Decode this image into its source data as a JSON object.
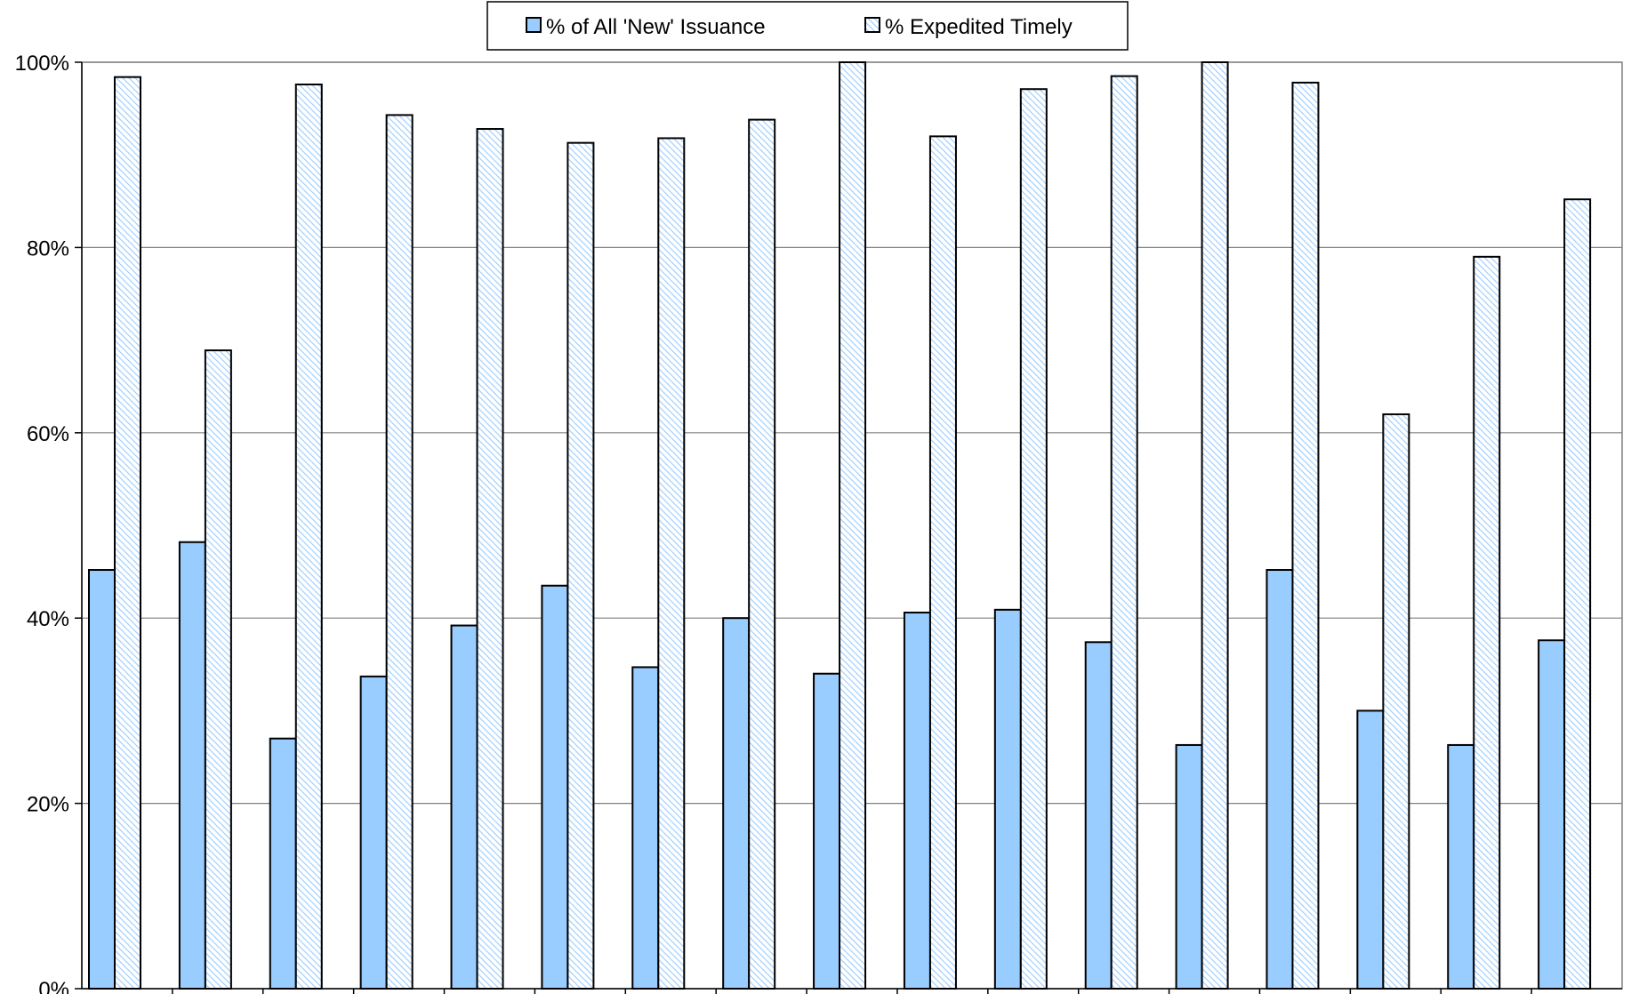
{
  "chart_data": {
    "type": "bar",
    "title": "",
    "xlabel": "",
    "ylabel": "",
    "ylim": [
      0,
      100
    ],
    "y_ticks": [
      "0%",
      "20%",
      "40%",
      "60%",
      "80%",
      "100%"
    ],
    "y_tick_values": [
      0,
      20,
      40,
      60,
      80,
      100
    ],
    "grid": true,
    "legend_placement": "top-center",
    "categories": [
      "",
      "",
      "",
      "",
      "",
      "",
      "",
      "",
      "",
      "",
      "",
      "",
      "",
      "",
      "",
      "",
      ""
    ],
    "series": [
      {
        "name": "% of All 'New' Issuance",
        "color": "#99ccff",
        "pattern": "solid",
        "values": [
          45.2,
          48.2,
          27.0,
          33.7,
          39.2,
          43.5,
          34.7,
          40.0,
          34.0,
          40.6,
          40.9,
          37.4,
          26.3,
          45.2,
          30.0,
          26.3,
          37.6
        ]
      },
      {
        "name": "% Expedited Timely",
        "color": "#99ccff",
        "pattern": "diagonal-hatch",
        "values": [
          98.4,
          68.9,
          97.6,
          94.3,
          92.8,
          91.3,
          91.8,
          93.8,
          100.0,
          92.0,
          97.1,
          98.5,
          100.0,
          97.8,
          62.0,
          79.0,
          85.2
        ]
      }
    ]
  }
}
